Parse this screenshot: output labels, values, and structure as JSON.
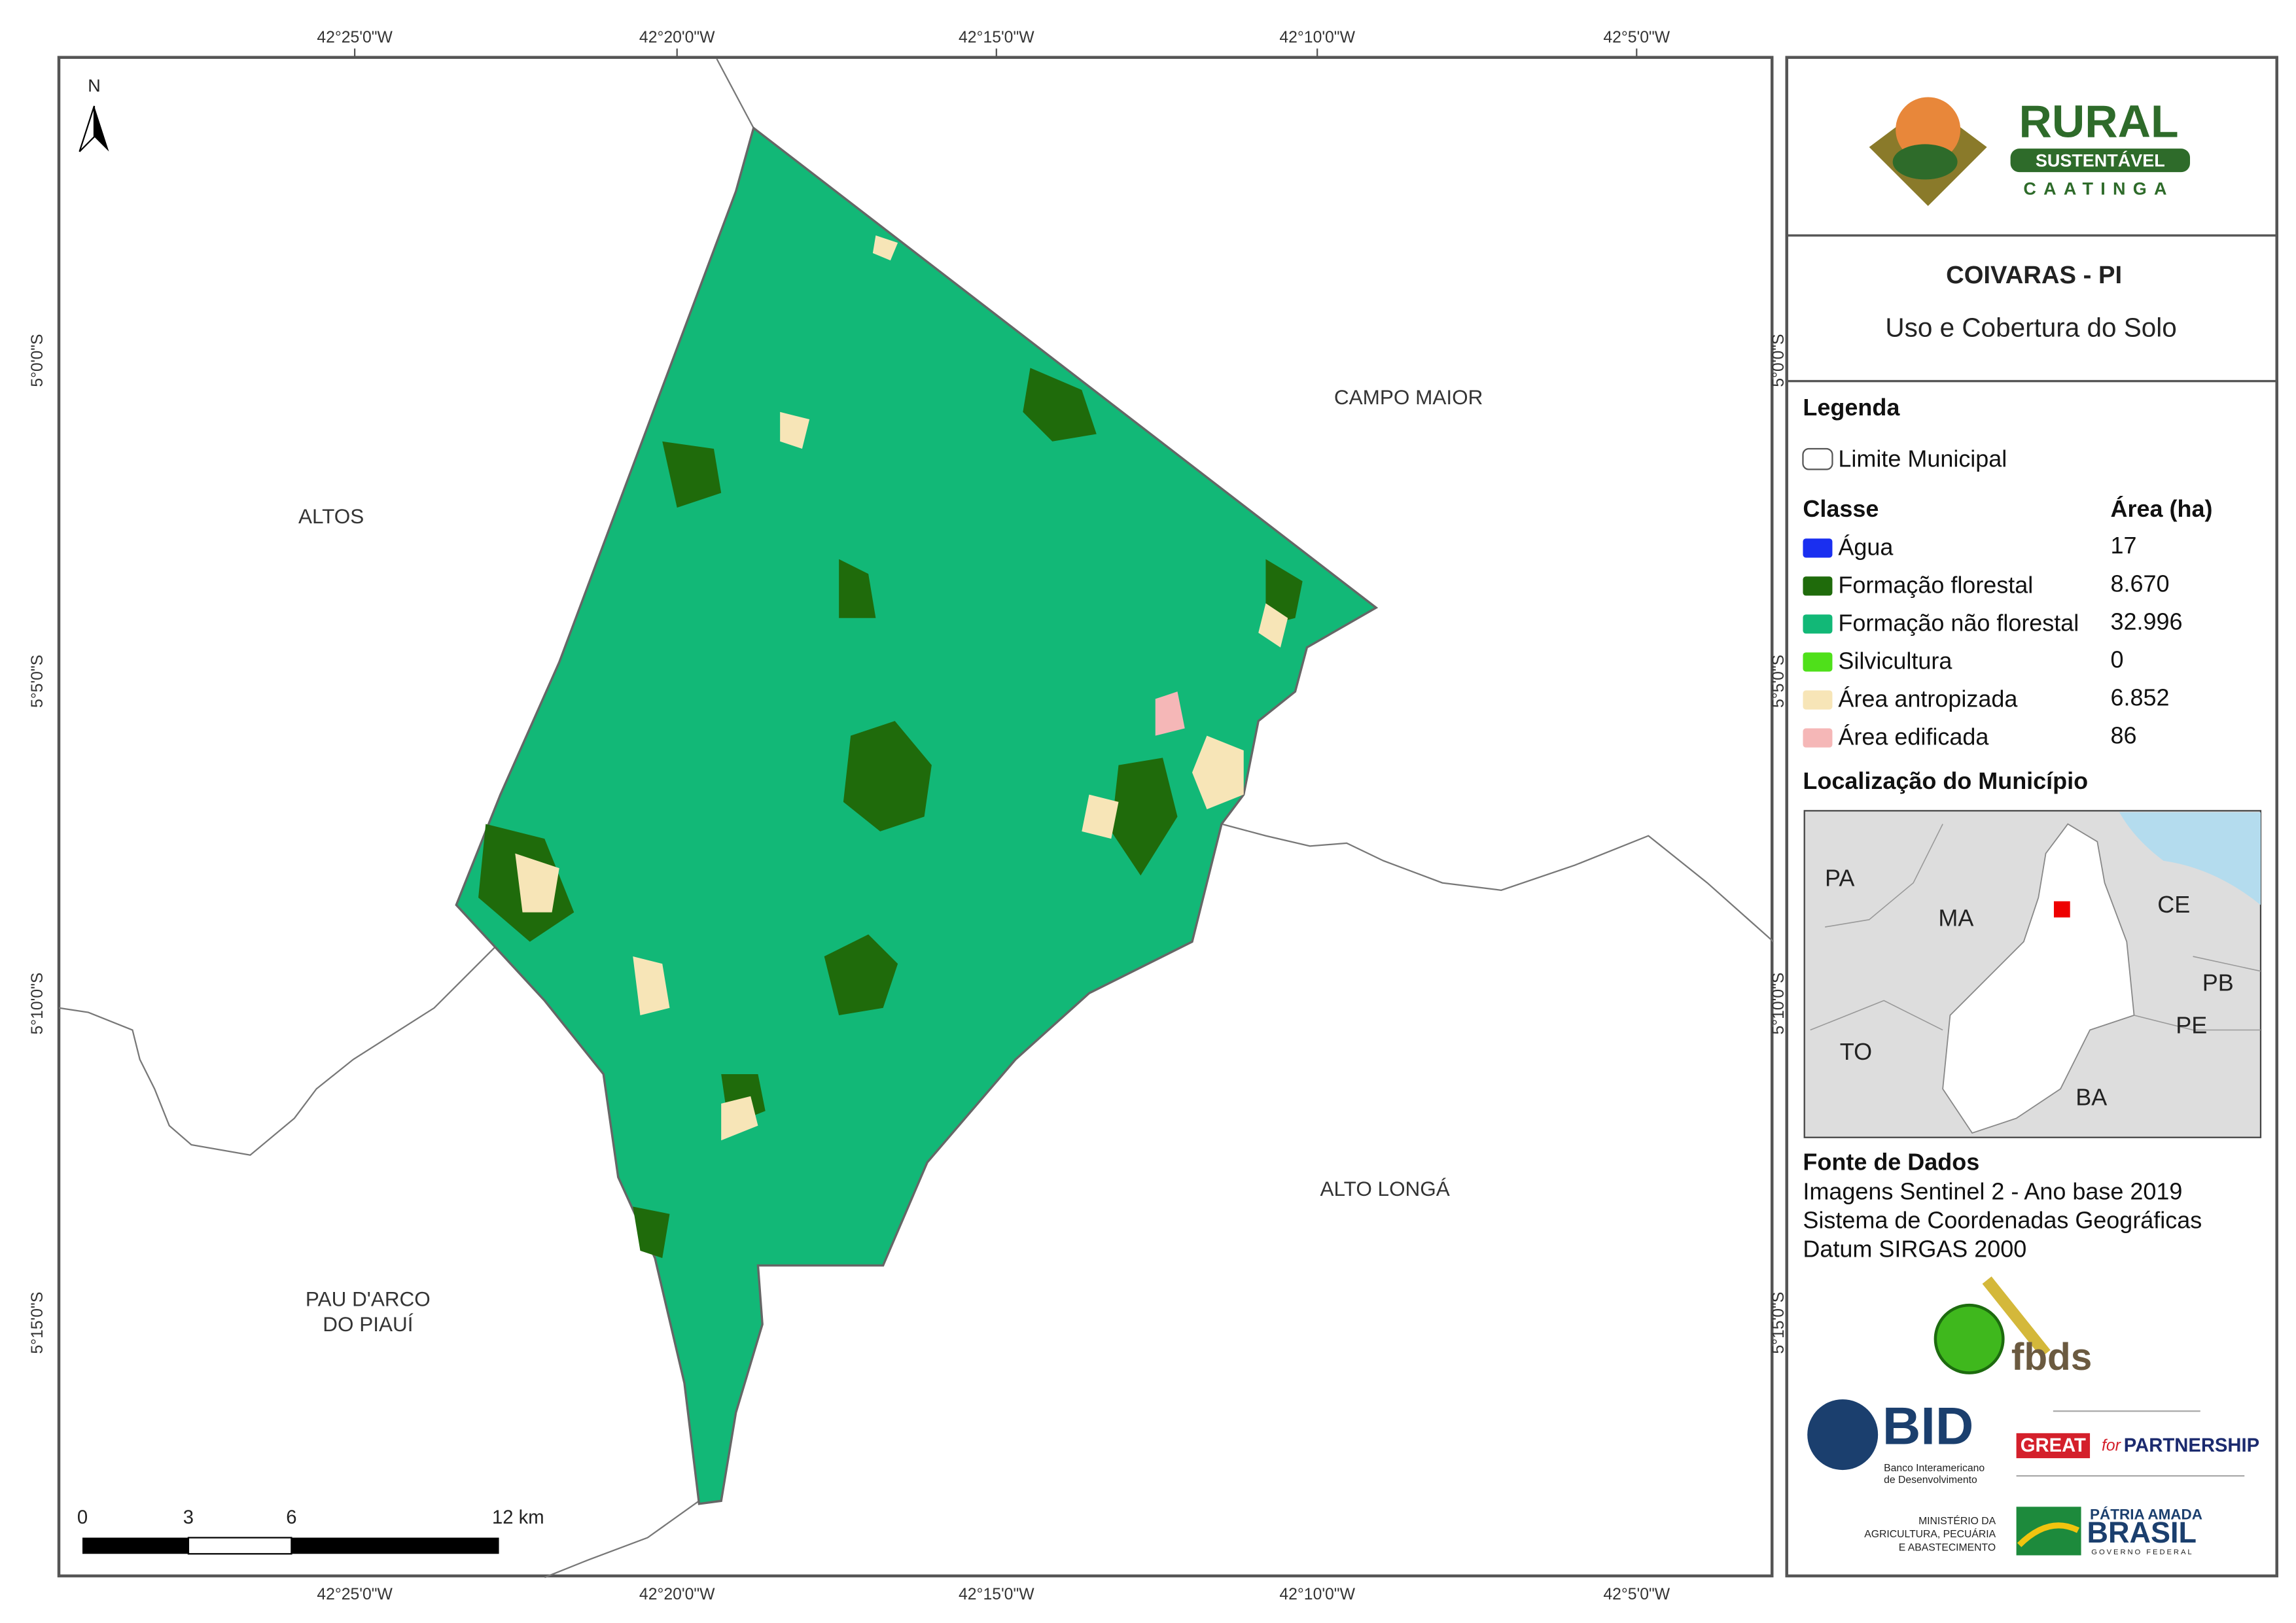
{
  "map": {
    "lon_labels": [
      "42°25'0\"W",
      "42°20'0\"W",
      "42°15'0\"W",
      "42°10'0\"W",
      "42°5'0\"W"
    ],
    "lat_labels": [
      "5°0'0\"S",
      "5°5'0\"S",
      "5°10'0\"S",
      "5°15'0\"S"
    ],
    "north": "N",
    "places": [
      "ALTOS",
      "CAMPO MAIOR",
      "ALTO LONGÁ",
      "PAU D'ARCO",
      "DO PIAUÍ"
    ],
    "scale_labels": [
      "0",
      "3",
      "6",
      "12 km"
    ]
  },
  "panel": {
    "logo": {
      "name": "RURAL",
      "ribbon": "SUSTENTÁVEL",
      "sub": "CAATINGA"
    },
    "title": "COIVARAS - PI",
    "subtitle": "Uso e Cobertura do Solo",
    "legend": {
      "heading": "Legenda",
      "boundary": "Limite Municipal",
      "class_header": "Classe",
      "area_header": "Área (ha)",
      "rows": [
        {
          "name": "Água",
          "area": "17",
          "color": "#1a2ff0"
        },
        {
          "name": "Formação florestal",
          "area": "8.670",
          "color": "#1f6b0b"
        },
        {
          "name": "Formação não florestal",
          "area": "32.996",
          "color": "#12b877"
        },
        {
          "name": "Silvicultura",
          "area": "0",
          "color": "#4fe01a"
        },
        {
          "name": "Área antropizada",
          "area": "6.852",
          "color": "#f7e5b7"
        },
        {
          "name": "Área edificada",
          "area": "86",
          "color": "#f5b7b7"
        }
      ]
    },
    "location": {
      "heading": "Localização do Município",
      "states": [
        "PA",
        "MA",
        "CE",
        "PB",
        "PE",
        "TO",
        "BA"
      ]
    },
    "source": {
      "heading": "Fonte de Dados",
      "lines": [
        "Imagens Sentinel 2 - Ano base 2019",
        "Sistema de Coordenadas Geográficas",
        "Datum SIRGAS 2000"
      ]
    },
    "logos": {
      "fbds": "fbds",
      "bid": "BID",
      "bid_sub": [
        "Banco Interamericano",
        "de Desenvolvimento"
      ],
      "great": "GREAT",
      "great_for": "for",
      "great_partner": "PARTNERSHIP",
      "ministry": [
        "MINISTÉRIO DA",
        "AGRICULTURA, PECUÁRIA",
        "E ABASTECIMENTO"
      ],
      "patria": "PÁTRIA AMADA",
      "brasil": "BRASIL",
      "governo": "GOVERNO FEDERAL"
    }
  }
}
